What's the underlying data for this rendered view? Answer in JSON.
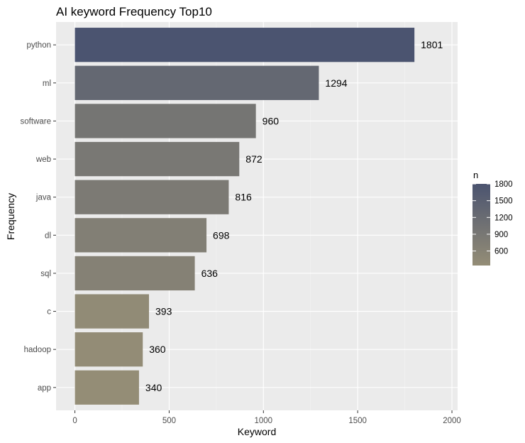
{
  "chart_data": {
    "type": "bar",
    "orientation": "horizontal",
    "title": "AI keyword Frequency Top10",
    "xlabel": "Keyword",
    "ylabel": "Frequency",
    "categories": [
      "python",
      "ml",
      "software",
      "web",
      "java",
      "dl",
      "sql",
      "c",
      "hadoop",
      "app"
    ],
    "values": [
      1801,
      1294,
      960,
      872,
      816,
      698,
      636,
      393,
      360,
      340
    ],
    "xlim": [
      -100,
      2030
    ],
    "x_ticks": [
      0,
      500,
      1000,
      1500,
      2000
    ],
    "grid": true,
    "legend": {
      "title": "n",
      "placement": "right",
      "ticks": [
        1800,
        1500,
        1200,
        900,
        600
      ],
      "range": [
        340,
        1801
      ]
    },
    "colors": {
      "high": "#4b5470",
      "low": "#948d76",
      "panel_bg": "#ebebeb",
      "grid_major": "#ffffff",
      "grid_minor": "#f4f4f4"
    }
  }
}
